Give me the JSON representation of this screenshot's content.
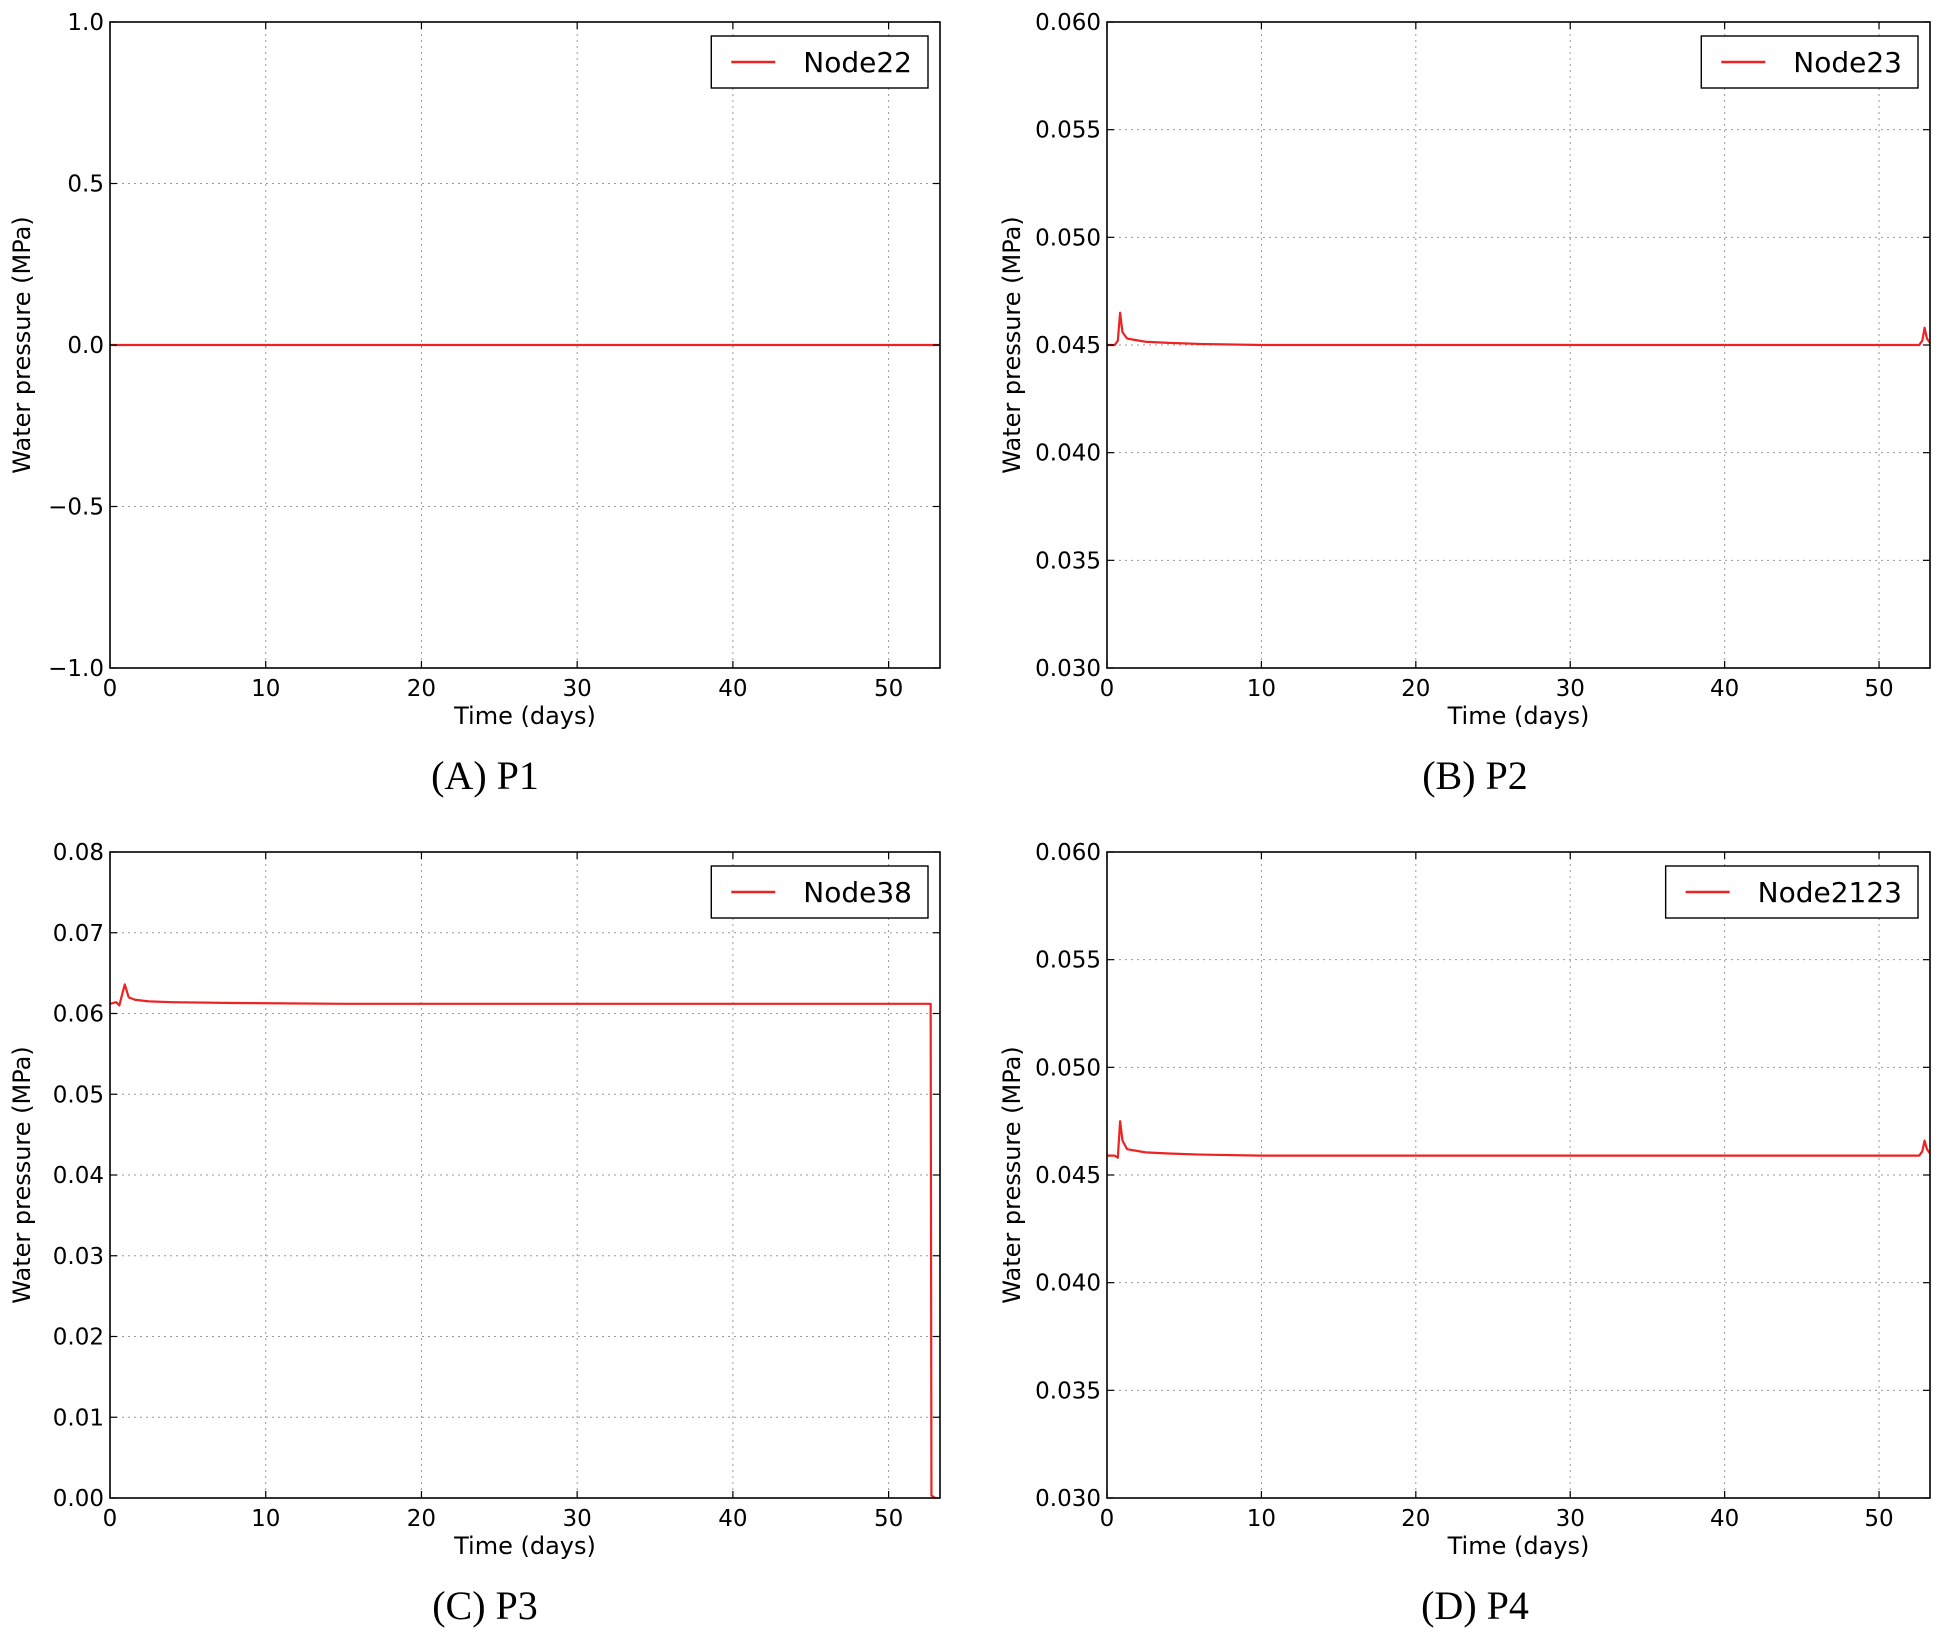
{
  "chart_data": [
    {
      "type": "line",
      "caption": "(A) P1",
      "xlabel": "Time (days)",
      "ylabel": "Water pressure (MPa)",
      "xlim": [
        0,
        53.3
      ],
      "ylim": [
        -1.0,
        1.0
      ],
      "xticks": [
        "0",
        "10",
        "20",
        "30",
        "40",
        "50"
      ],
      "yticks": [
        "1.0",
        "0.5",
        "0.0",
        "−0.5",
        "−1.0"
      ],
      "yticks_values": [
        1.0,
        0.5,
        0.0,
        -0.5,
        -1.0
      ],
      "grid": true,
      "legend_position": "top-right",
      "series": [
        {
          "name": "Node22",
          "color": "#ee2222",
          "x": [
            0,
            53.3
          ],
          "y": [
            0,
            0
          ]
        }
      ]
    },
    {
      "type": "line",
      "caption": "(B) P2",
      "xlabel": "Time (days)",
      "ylabel": "Water pressure (MPa)",
      "xlim": [
        0,
        53.3
      ],
      "ylim": [
        0.03,
        0.06
      ],
      "xticks": [
        "0",
        "10",
        "20",
        "30",
        "40",
        "50"
      ],
      "yticks": [
        "0.060",
        "0.055",
        "0.050",
        "0.045",
        "0.040",
        "0.035",
        "0.030"
      ],
      "yticks_values": [
        0.06,
        0.055,
        0.05,
        0.045,
        0.04,
        0.035,
        0.03
      ],
      "grid": true,
      "legend_position": "top-right",
      "series": [
        {
          "name": "Node23",
          "color": "#ee2222",
          "x": [
            0,
            0.5,
            0.7,
            0.85,
            1.0,
            1.3,
            1.7,
            2.5,
            4,
            6,
            10,
            20,
            30,
            40,
            52.6,
            52.8,
            52.95,
            53.1,
            53.3
          ],
          "y": [
            0.045,
            0.045,
            0.0452,
            0.0465,
            0.0456,
            0.0453,
            0.04525,
            0.04515,
            0.0451,
            0.04505,
            0.045,
            0.045,
            0.045,
            0.045,
            0.045,
            0.0452,
            0.0458,
            0.0453,
            0.0451
          ]
        }
      ]
    },
    {
      "type": "line",
      "caption": "(C) P3",
      "xlabel": "Time (days)",
      "ylabel": "Water pressure (MPa)",
      "xlim": [
        0,
        53.3
      ],
      "ylim": [
        0.0,
        0.08
      ],
      "xticks": [
        "0",
        "10",
        "20",
        "30",
        "40",
        "50"
      ],
      "yticks": [
        "0.08",
        "0.07",
        "0.06",
        "0.05",
        "0.04",
        "0.03",
        "0.02",
        "0.01",
        "0.00"
      ],
      "yticks_values": [
        0.08,
        0.07,
        0.06,
        0.05,
        0.04,
        0.03,
        0.02,
        0.01,
        0.0
      ],
      "grid": true,
      "legend_position": "top-right",
      "series": [
        {
          "name": "Node38",
          "color": "#ee2222",
          "x": [
            0,
            0.4,
            0.6,
            0.8,
            0.95,
            1.2,
            1.6,
            2.5,
            4,
            8,
            15,
            30,
            45,
            52.7,
            52.75,
            53.0
          ],
          "y": [
            0.0612,
            0.0614,
            0.061,
            0.0625,
            0.0636,
            0.062,
            0.0617,
            0.0615,
            0.0614,
            0.0613,
            0.0612,
            0.0612,
            0.0612,
            0.0612,
            0.0003,
            0.0
          ]
        }
      ]
    },
    {
      "type": "line",
      "caption": "(D) P4",
      "xlabel": "Time (days)",
      "ylabel": "Water pressure (MPa)",
      "xlim": [
        0,
        53.3
      ],
      "ylim": [
        0.03,
        0.06
      ],
      "xticks": [
        "0",
        "10",
        "20",
        "30",
        "40",
        "50"
      ],
      "yticks": [
        "0.060",
        "0.055",
        "0.050",
        "0.045",
        "0.040",
        "0.035",
        "0.030"
      ],
      "yticks_values": [
        0.06,
        0.055,
        0.05,
        0.045,
        0.04,
        0.035,
        0.03
      ],
      "grid": true,
      "legend_position": "top-right",
      "series": [
        {
          "name": "Node2123",
          "color": "#ee2222",
          "x": [
            0,
            0.5,
            0.7,
            0.85,
            1.0,
            1.3,
            1.7,
            2.5,
            4,
            6,
            10,
            20,
            30,
            40,
            52.6,
            52.8,
            52.95,
            53.1,
            53.3
          ],
          "y": [
            0.0459,
            0.0459,
            0.0458,
            0.0475,
            0.0466,
            0.0462,
            0.04615,
            0.04605,
            0.046,
            0.04595,
            0.0459,
            0.0459,
            0.0459,
            0.0459,
            0.0459,
            0.0461,
            0.0466,
            0.0462,
            0.046
          ]
        }
      ]
    }
  ]
}
